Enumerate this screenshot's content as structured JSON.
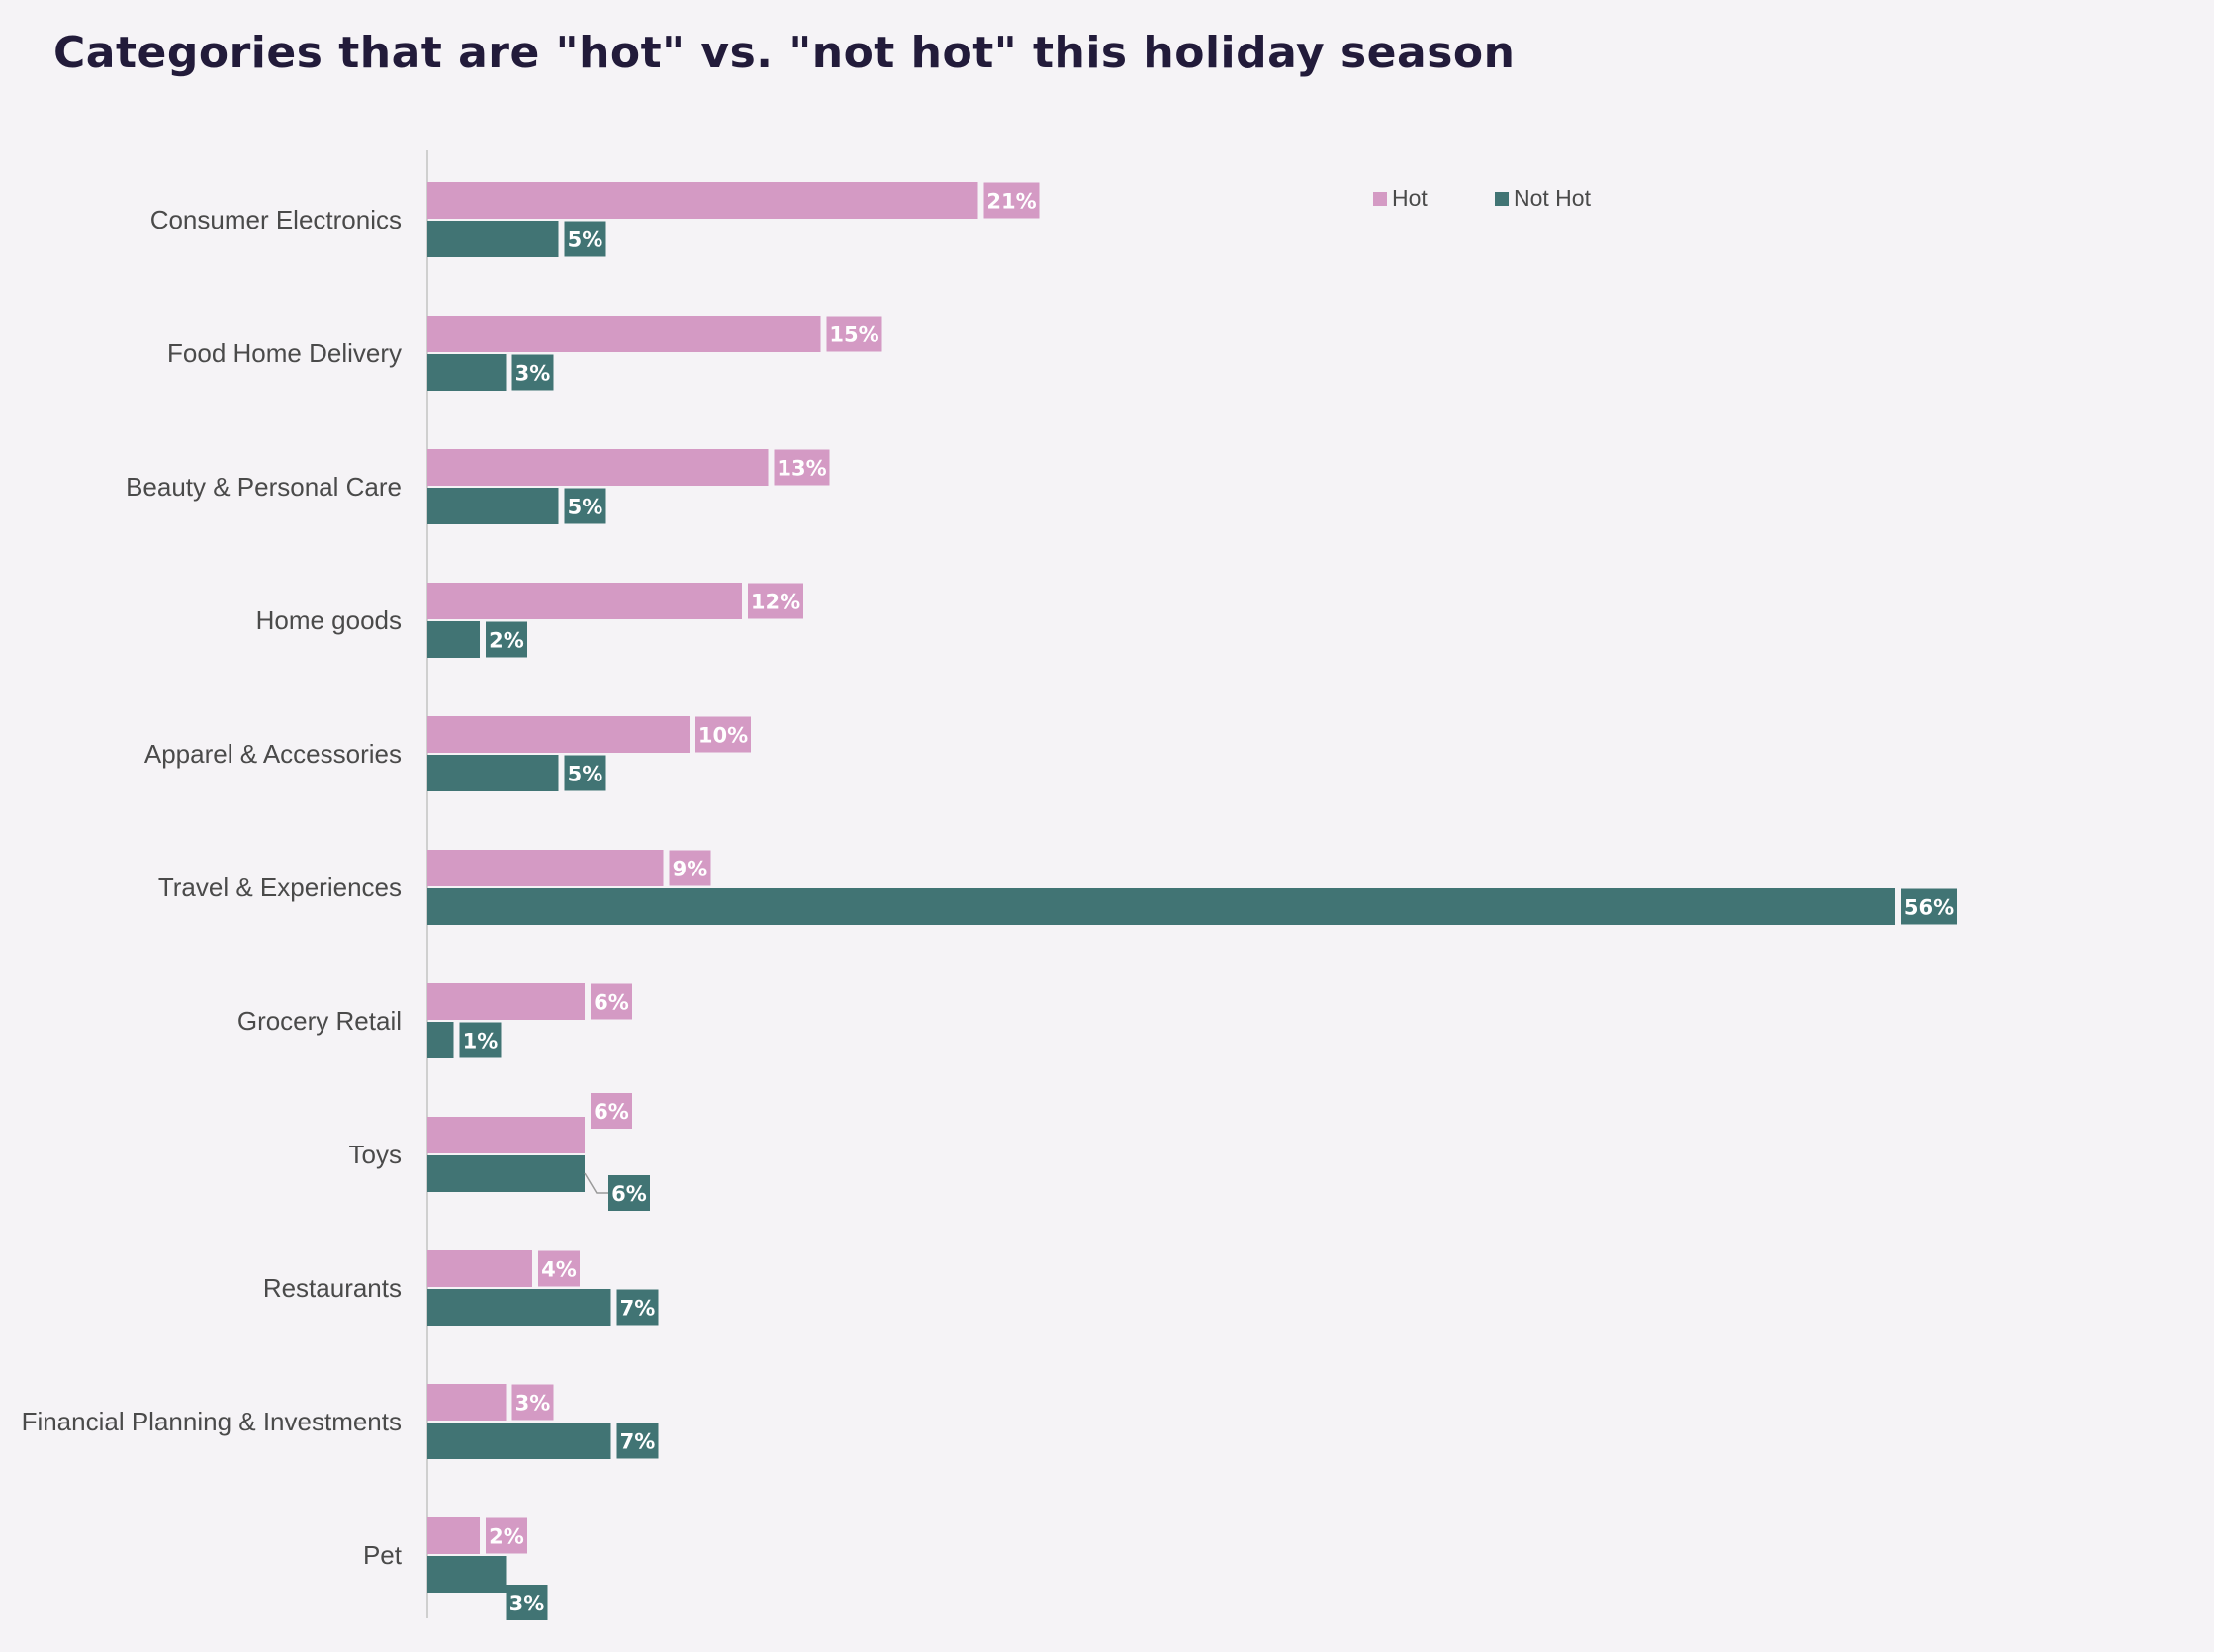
{
  "chart_data": {
    "type": "bar",
    "orientation": "horizontal",
    "title": "Categories that are \"hot\" vs. \"not hot\" this holiday season",
    "categories": [
      "Consumer Electronics",
      "Food Home Delivery",
      "Beauty & Personal Care",
      "Home goods",
      "Apparel & Accessories",
      "Travel & Experiences",
      "Grocery Retail",
      "Toys",
      "Restaurants",
      "Financial Planning & Investments",
      "Pet"
    ],
    "series": [
      {
        "name": "Hot",
        "color": "#d49ac4",
        "values": [
          21,
          15,
          13,
          12,
          10,
          9,
          6,
          6,
          4,
          3,
          2
        ],
        "labels": [
          "21%",
          "15%",
          "13%",
          "12%",
          "10%",
          "9%",
          "6%",
          "6%",
          "4%",
          "3%",
          "2%"
        ]
      },
      {
        "name": "Not Hot",
        "color": "#417474",
        "values": [
          5,
          3,
          5,
          2,
          5,
          56,
          1,
          6,
          7,
          7,
          3
        ],
        "labels": [
          "5%",
          "3%",
          "5%",
          "2%",
          "5%",
          "56%",
          "1%",
          "6%",
          "7%",
          "7%",
          "3%"
        ]
      }
    ],
    "unit": "%",
    "xlim": [
      0,
      56
    ],
    "grid": false,
    "legend": "top-right"
  }
}
